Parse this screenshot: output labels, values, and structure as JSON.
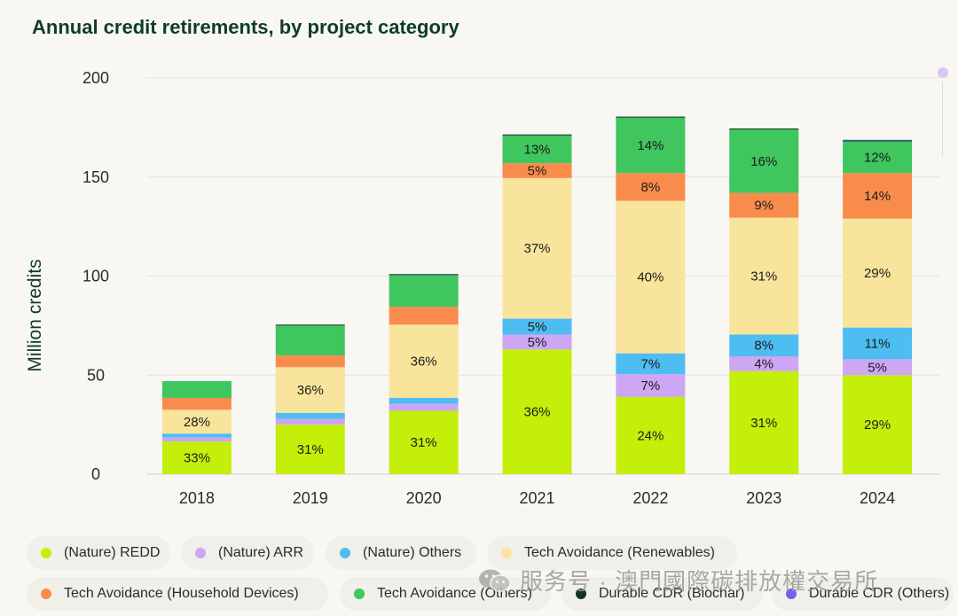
{
  "chart_data": {
    "type": "bar",
    "stacked": true,
    "title": "Annual credit retirements, by project category",
    "ylabel": "Million credits",
    "xlabel": "",
    "ylim": [
      0,
      200
    ],
    "yticks": [
      0,
      50,
      100,
      150,
      200
    ],
    "grid": true,
    "legend_position": "bottom",
    "categories": [
      "2018",
      "2019",
      "2020",
      "2021",
      "2022",
      "2023",
      "2024"
    ],
    "series": [
      {
        "name": "(Nature) REDD",
        "color": "#c3ef0a",
        "values": [
          16.5,
          25,
          32,
          63,
          39,
          52,
          50
        ],
        "labels": [
          "33%",
          "31%",
          "31%",
          "36%",
          "24%",
          "31%",
          "29%"
        ]
      },
      {
        "name": "(Nature) ARR",
        "color": "#cda6f4",
        "values": [
          2,
          3,
          3.5,
          7.5,
          11.5,
          7.5,
          8
        ],
        "labels": [
          "",
          "",
          "",
          "5%",
          "7%",
          "4%",
          "5%"
        ]
      },
      {
        "name": "(Nature) Others",
        "color": "#4dbdf2",
        "values": [
          2,
          3,
          3,
          8,
          10.5,
          11,
          16
        ],
        "labels": [
          "",
          "",
          "",
          "5%",
          "7%",
          "8%",
          "11%"
        ]
      },
      {
        "name": "Tech Avoidance (Renewables)",
        "color": "#f9e49b",
        "values": [
          12,
          23,
          37,
          71,
          77,
          59,
          55
        ],
        "labels": [
          "28%",
          "36%",
          "36%",
          "37%",
          "40%",
          "31%",
          "29%"
        ]
      },
      {
        "name": "Tech Avoidance (Household Devices)",
        "color": "#f98c4c",
        "values": [
          6,
          6,
          9,
          7.5,
          14,
          12.5,
          23
        ],
        "labels": [
          "",
          "",
          "",
          "5%",
          "8%",
          "9%",
          "14%"
        ]
      },
      {
        "name": "Tech Avoidance (Others)",
        "color": "#3fc65f",
        "values": [
          8.5,
          15,
          16,
          14,
          28,
          32,
          16
        ],
        "labels": [
          "",
          "",
          "",
          "13%",
          "14%",
          "16%",
          "12%"
        ]
      },
      {
        "name": "Durable CDR (Biochar)",
        "color": "#0e3520",
        "values": [
          0,
          0.5,
          0.5,
          0.5,
          0.5,
          0.5,
          0.5
        ],
        "labels": [
          "",
          "",
          "",
          "",
          "",
          "",
          ""
        ]
      },
      {
        "name": "Durable CDR (Others)",
        "color": "#6f5ff2",
        "values": [
          0,
          0,
          0,
          0,
          0,
          0,
          0.3
        ],
        "labels": [
          "",
          "",
          "",
          "",
          "",
          "",
          ""
        ]
      }
    ]
  },
  "watermark": {
    "icon": "wechat-icon",
    "text": "服务号 · 澳門國際碳排放權交易所"
  }
}
